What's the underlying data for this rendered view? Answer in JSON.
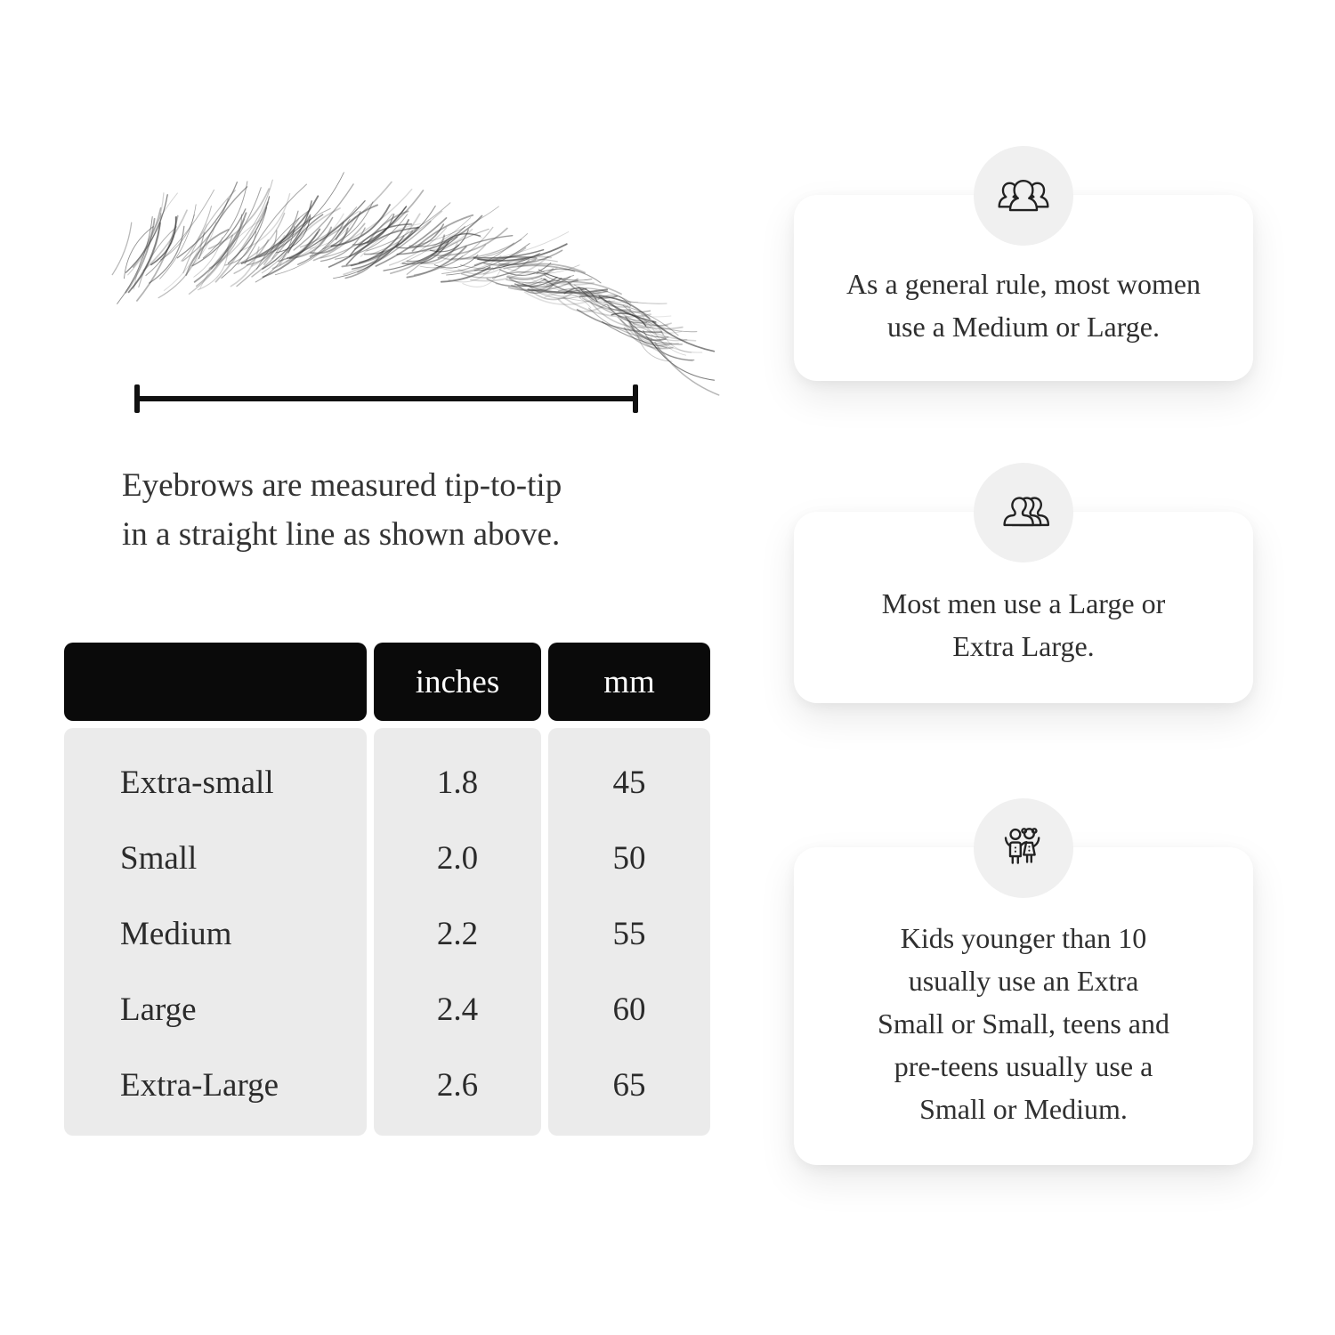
{
  "measure": {
    "caption_lines": [
      "Eyebrows are measured tip-to-tip",
      "in a straight line as shown above."
    ],
    "caption_text": "Eyebrows are measured tip-to-tip in a straight line as shown above."
  },
  "table": {
    "columns": [
      "",
      "inches",
      "mm"
    ],
    "rows": [
      {
        "label": "Extra-small",
        "inches": "1.8",
        "mm": "45"
      },
      {
        "label": "Small",
        "inches": "2.0",
        "mm": "50"
      },
      {
        "label": "Medium",
        "inches": "2.2",
        "mm": "55"
      },
      {
        "label": "Large",
        "inches": "2.4",
        "mm": "60"
      },
      {
        "label": "Extra-Large",
        "inches": "2.6",
        "mm": "65"
      }
    ]
  },
  "cards": [
    {
      "icon": "women-group-icon",
      "lines": [
        "As a general rule, most women",
        "use a Medium or Large."
      ],
      "text": "As a general rule, most women use a Medium or Large."
    },
    {
      "icon": "men-group-icon",
      "lines": [
        "Most men use a Large or",
        "Extra Large."
      ],
      "text": "Most men use a Large or Extra Large."
    },
    {
      "icon": "kids-icon",
      "lines": [
        "Kids younger than 10",
        "usually use an Extra",
        "Small or Small, teens and",
        "pre-teens usually use a",
        "Small or Medium."
      ],
      "text": "Kids younger than 10 usually use an Extra Small or Small, teens and pre-teens usually use a Small or Medium."
    }
  ],
  "colors": {
    "page_bg": "#ffffff",
    "header_bg": "#0a0a0a",
    "header_text": "#ffffff",
    "table_body_bg": "#ebebeb",
    "badge_bg": "#f0f0f0",
    "text": "#2e2e2e",
    "line": "#111111"
  }
}
